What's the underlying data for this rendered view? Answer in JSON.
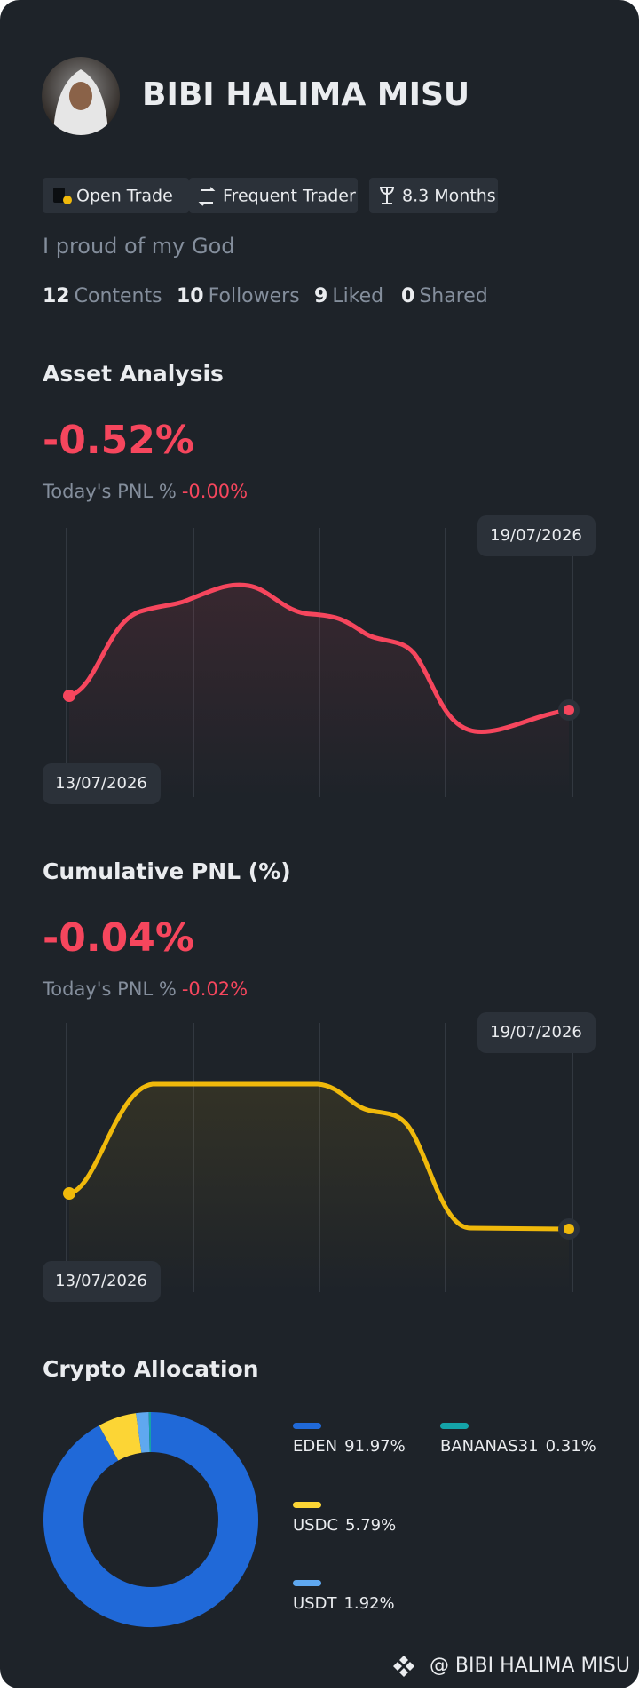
{
  "profile": {
    "name": "BIBI HALIMA MISU",
    "tags": [
      "Open Trade",
      "Frequent Trader",
      "8.3 Months"
    ],
    "bio": "I proud of my God",
    "stats": [
      {
        "value": "12",
        "label": "Contents"
      },
      {
        "value": "10",
        "label": "Followers"
      },
      {
        "value": "9",
        "label": "Liked"
      },
      {
        "value": "0",
        "label": "Shared"
      }
    ]
  },
  "asset_analysis": {
    "title": "Asset Analysis",
    "value": "-0.52%",
    "pnl_label": "Today's PNL %",
    "pnl": "-0.00%",
    "start_date": "13/07/2026",
    "end_date": "19/07/2026"
  },
  "cumulative_pnl": {
    "title": "Cumulative PNL (%)",
    "value": "-0.04%",
    "pnl_label": "Today's PNL %",
    "pnl": "-0.02%",
    "start_date": "13/07/2026",
    "end_date": "19/07/2026"
  },
  "chart_data": {
    "type": "donut",
    "title": "Crypto Allocation",
    "categories": [
      "EDEN",
      "USDC",
      "USDT",
      "BANANAS31"
    ],
    "values": [
      91.97,
      5.79,
      1.92,
      0.31
    ],
    "value_labels": [
      "91.97%",
      "5.79%",
      "1.92%",
      "0.31%"
    ],
    "colors": [
      "#2069d8",
      "#fcd535",
      "#5fa8f0",
      "#14a3a8"
    ]
  },
  "footer": "@ BIBI HALIMA MISU"
}
